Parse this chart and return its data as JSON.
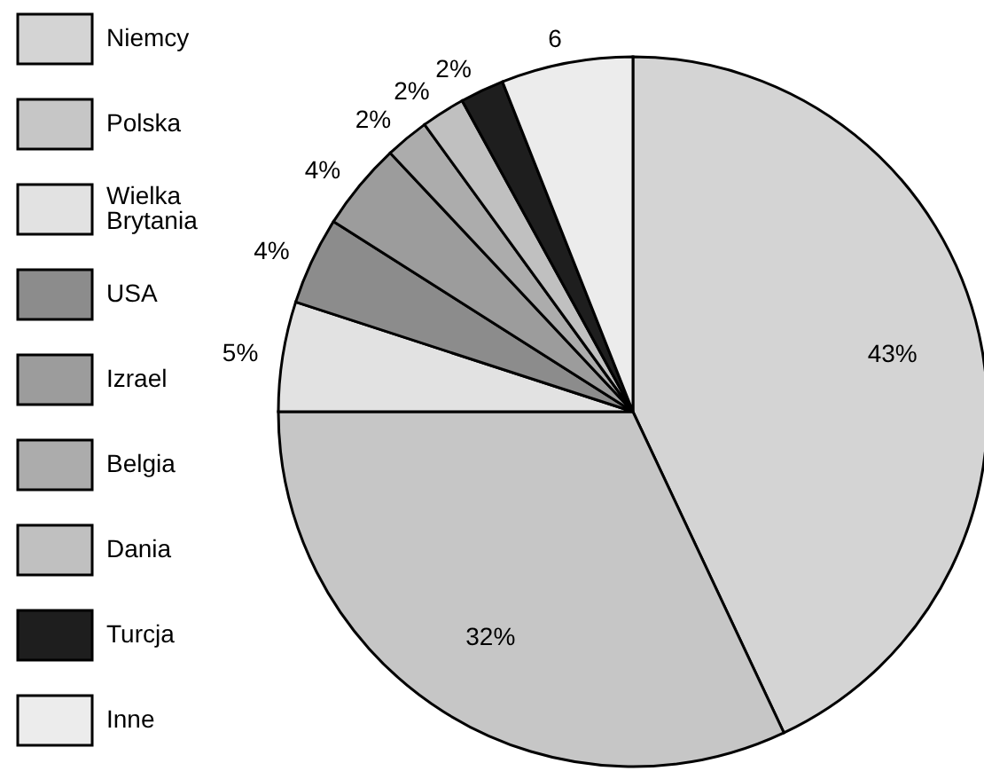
{
  "chart_data": {
    "type": "pie",
    "categories": [
      "Niemcy",
      "Polska",
      "Wielka Brytania",
      "USA",
      "Izrael",
      "Belgia",
      "Dania",
      "Turcja",
      "Inne"
    ],
    "values": [
      43,
      32,
      5,
      4,
      4,
      2,
      2,
      2,
      6
    ],
    "value_labels": [
      "43%",
      "32%",
      "5%",
      "4%",
      "4%",
      "2%",
      "2%",
      "2%",
      "6"
    ],
    "colors": [
      "#d4d4d4",
      "#c6c6c6",
      "#e2e2e2",
      "#8c8c8c",
      "#9c9c9c",
      "#acacac",
      "#c0c0c0",
      "#1e1e1e",
      "#ececec"
    ],
    "legend": "left"
  }
}
